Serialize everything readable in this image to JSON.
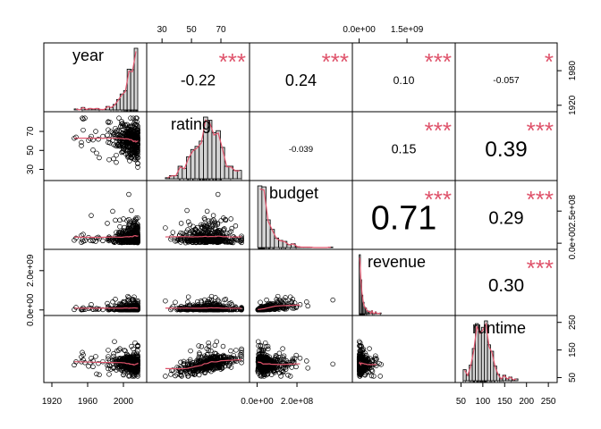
{
  "chart_data": {
    "type": "scatter-matrix",
    "variables": [
      "year",
      "rating",
      "budget",
      "revenue",
      "runtime"
    ],
    "diagonal": "histogram-with-density",
    "colors": {
      "smooth": "#DF536B",
      "stars": "#DF536B",
      "points": "#000000",
      "hist_fill": "#d3d3d3"
    },
    "correlations": [
      {
        "pair": [
          "year",
          "rating"
        ],
        "r": "-0.22",
        "stars": "***"
      },
      {
        "pair": [
          "year",
          "budget"
        ],
        "r": "0.24",
        "stars": "***"
      },
      {
        "pair": [
          "year",
          "revenue"
        ],
        "r": "0.10",
        "stars": "***"
      },
      {
        "pair": [
          "year",
          "runtime"
        ],
        "r": "-0.057",
        "stars": "*"
      },
      {
        "pair": [
          "rating",
          "budget"
        ],
        "r": "-0.039",
        "stars": ""
      },
      {
        "pair": [
          "rating",
          "revenue"
        ],
        "r": "0.15",
        "stars": "***"
      },
      {
        "pair": [
          "rating",
          "runtime"
        ],
        "r": "0.39",
        "stars": "***"
      },
      {
        "pair": [
          "budget",
          "revenue"
        ],
        "r": "0.71",
        "stars": "***"
      },
      {
        "pair": [
          "budget",
          "runtime"
        ],
        "r": "0.29",
        "stars": "***"
      },
      {
        "pair": [
          "revenue",
          "runtime"
        ],
        "r": "0.30",
        "stars": "***"
      }
    ],
    "axes": {
      "year": {
        "range": [
          1915,
          2022
        ],
        "ticks": [
          "1920",
          "1960",
          "2000"
        ],
        "ticks_side": [
          "1920",
          "1980"
        ]
      },
      "rating": {
        "range": [
          22,
          87
        ],
        "ticks": [
          "30",
          "50",
          "70"
        ]
      },
      "budget": {
        "range": [
          -20000000,
          460000000
        ],
        "ticks": [
          "0.0e+00",
          "2.0e+08"
        ],
        "ticks_side": [
          "0.0e+00",
          "2.5e+08"
        ]
      },
      "revenue": {
        "range": [
          -100000000,
          2900000000
        ],
        "ticks": [
          "0.0e+00",
          "1.5e+09"
        ],
        "ticks_side": [
          "0.0e+00",
          "2.0e+09"
        ]
      },
      "runtime": {
        "range": [
          45,
          262
        ],
        "ticks": [
          "50",
          "100",
          "150",
          "200",
          "250"
        ]
      }
    }
  }
}
